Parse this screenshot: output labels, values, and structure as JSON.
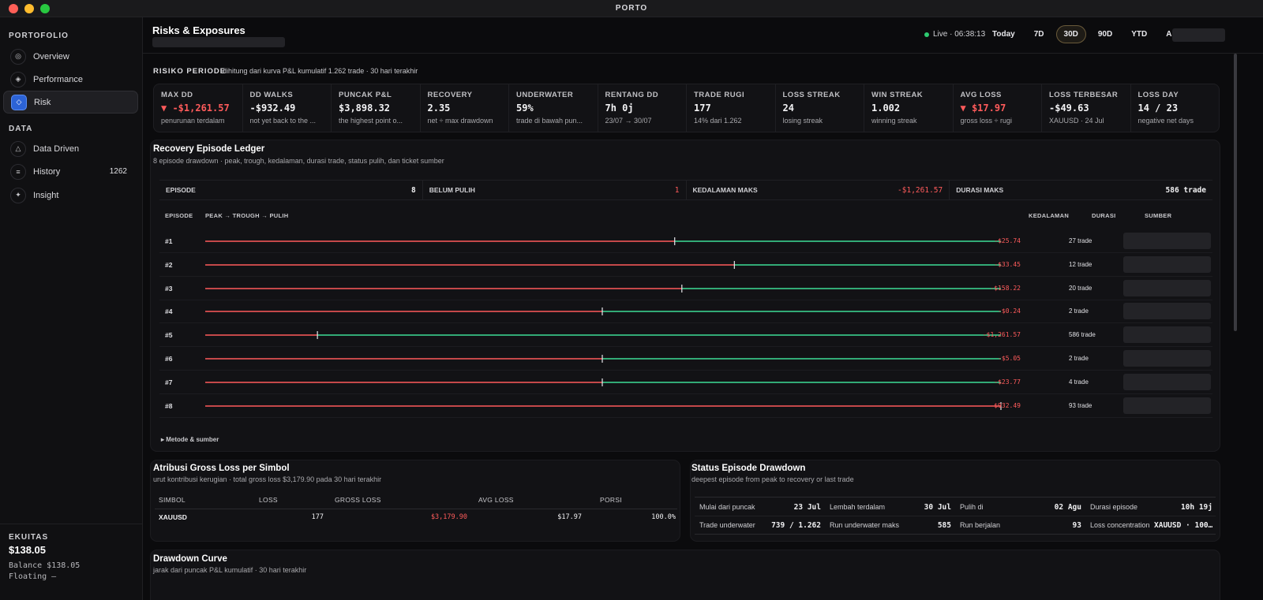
{
  "app": {
    "title": "PORTO",
    "colors": {
      "accent": "#2c63d6",
      "negative": "#ff5b5b",
      "positive": "#3ddc97",
      "live": "#2ecc71"
    }
  },
  "sidebar": {
    "section_portfolio": "PORTOFOLIO",
    "section_data": "DATA",
    "items": [
      {
        "label": "Overview",
        "icon": "target-icon"
      },
      {
        "label": "Performance",
        "icon": "diamond-icon"
      },
      {
        "label": "Risk",
        "icon": "risk-diamond-icon"
      },
      {
        "label": "Data Driven",
        "icon": "triangle-icon"
      },
      {
        "label": "History",
        "icon": "list-icon",
        "count": "1262"
      },
      {
        "label": "Insight",
        "icon": "sparkle-icon"
      }
    ],
    "equity_label": "EKUITAS",
    "equity_value": "$138.05",
    "balance": "Balance $138.05",
    "floating": "Floating –"
  },
  "header": {
    "title": "Risks & Exposures",
    "live": "Live · 06:38:13",
    "ranges": [
      "Today",
      "7D",
      "30D",
      "90D",
      "YTD",
      "ALL"
    ],
    "active_range": "30D"
  },
  "risk_period": {
    "label": "RISIKO PERIODE",
    "desc": "dihitung dari kurva P&L kumulatif 1.262 trade · 30 hari terakhir",
    "stats": [
      {
        "label": "MAX DD",
        "value": "▼ -$1,261.57",
        "sub": "penurunan terdalam",
        "neg": true
      },
      {
        "label": "DD WALKS",
        "value": "-$932.49",
        "sub": "not yet back to the ...",
        "neg": false
      },
      {
        "label": "PUNCAK P&L",
        "value": "$3,898.32",
        "sub": "the highest point o...",
        "neg": false
      },
      {
        "label": "RECOVERY",
        "value": "2.35",
        "sub": "net ÷ max drawdown",
        "neg": false
      },
      {
        "label": "UNDERWATER",
        "value": "59%",
        "sub": "trade di bawah pun...",
        "neg": false
      },
      {
        "label": "RENTANG DD",
        "value": "7h 0j",
        "sub": "23/07 → 30/07",
        "neg": false
      },
      {
        "label": "TRADE RUGI",
        "value": "177",
        "sub": "14% dari 1.262",
        "neg": false
      },
      {
        "label": "LOSS STREAK",
        "value": "24",
        "sub": "losing streak",
        "neg": false
      },
      {
        "label": "WIN STREAK",
        "value": "1.002",
        "sub": "winning streak",
        "neg": false
      },
      {
        "label": "AVG LOSS",
        "value": "▼ $17.97",
        "sub": "gross loss ÷ rugi",
        "neg": true
      },
      {
        "label": "LOSS TERBESAR",
        "value": "-$49.63",
        "sub": "XAUUSD · 24 Jul",
        "neg": false
      },
      {
        "label": "LOSS DAY",
        "value": "14 / 23",
        "sub": "negative net days",
        "neg": false
      }
    ]
  },
  "ledger": {
    "title": "Recovery Episode Ledger",
    "subtitle": "8 episode drawdown · peak, trough, kedalaman, durasi trade, status pulih, dan ticket sumber",
    "summary": [
      {
        "label": "EPISODE",
        "value": "8",
        "neg": false
      },
      {
        "label": "BELUM PULIH",
        "value": "1",
        "neg": true
      },
      {
        "label": "KEDALAMAN MAKS",
        "value": "-$1,261.57",
        "neg": true
      },
      {
        "label": "DURASI MAKS",
        "value": "586 trade",
        "neg": false
      }
    ],
    "columns": {
      "episode": "EPISODE",
      "path": "PEAK → TROUGH → PULIH",
      "depth": "KEDALAMAN",
      "duration": "DURASI",
      "source": "SUMBER"
    },
    "episodes": [
      {
        "id": "#1",
        "trough": 0.59,
        "recovered": true,
        "depth": "-$25.74",
        "duration": "27 trade"
      },
      {
        "id": "#2",
        "trough": 0.665,
        "recovered": true,
        "depth": "-$33.45",
        "duration": "12 trade"
      },
      {
        "id": "#3",
        "trough": 0.599,
        "recovered": true,
        "depth": "-$158.22",
        "duration": "20 trade"
      },
      {
        "id": "#4",
        "trough": 0.499,
        "recovered": true,
        "depth": "-$0.24",
        "duration": "2 trade"
      },
      {
        "id": "#5",
        "trough": 0.141,
        "recovered": true,
        "depth": "-$1,261.57",
        "duration": "586 trade"
      },
      {
        "id": "#6",
        "trough": 0.499,
        "recovered": true,
        "depth": "-$5.05",
        "duration": "2 trade"
      },
      {
        "id": "#7",
        "trough": 0.499,
        "recovered": true,
        "depth": "-$23.77",
        "duration": "4 trade"
      },
      {
        "id": "#8",
        "trough": 1.0,
        "recovered": false,
        "depth": "-$932.49",
        "duration": "93 trade"
      }
    ],
    "metode": "▸ Metode & sumber"
  },
  "attribution": {
    "title": "Atribusi Gross Loss per Simbol",
    "subtitle": "urut kontribusi kerugian · total gross loss $3,179.90 pada 30 hari terakhir",
    "headers": [
      "SIMBOL",
      "LOSS",
      "GROSS LOSS",
      "AVG LOSS",
      "PORSI"
    ],
    "rows": [
      {
        "symbol": "XAUUSD",
        "loss": "177",
        "gross": "$3,179.90",
        "avg": "$17.97",
        "share": "100.0%"
      }
    ]
  },
  "status": {
    "title": "Status Episode Drawdown",
    "subtitle": "deepest episode from peak to recovery or last trade",
    "cells": [
      {
        "label": "Mulai dari puncak",
        "value": "23 Jul"
      },
      {
        "label": "Lembah terdalam",
        "value": "30 Jul"
      },
      {
        "label": "Pulih di",
        "value": "02 Agu"
      },
      {
        "label": "Durasi episode",
        "value": "10h 19j"
      },
      {
        "label": "Trade underwater",
        "value": "739 / 1.262"
      },
      {
        "label": "Run underwater maks",
        "value": "585"
      },
      {
        "label": "Run berjalan",
        "value": "93"
      },
      {
        "label": "Loss concentration",
        "value": "XAUUSD · 100…"
      }
    ]
  },
  "drawdown": {
    "title": "Drawdown Curve",
    "subtitle": "jarak dari puncak P&L kumulatif · 30 hari terakhir"
  }
}
